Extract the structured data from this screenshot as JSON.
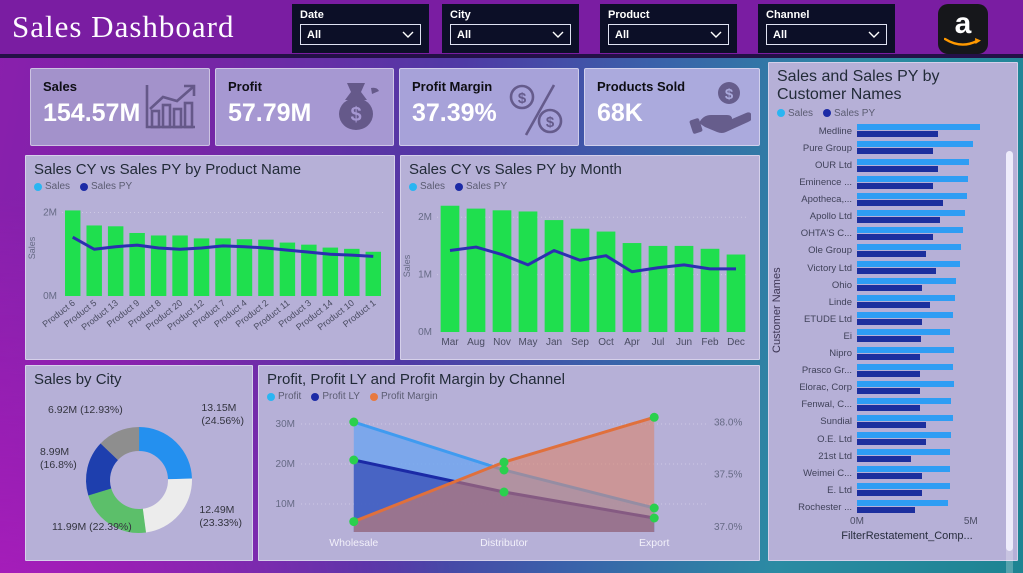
{
  "header": {
    "title": "Sales Dashboard",
    "filters": [
      {
        "label": "Date",
        "value": "All"
      },
      {
        "label": "City",
        "value": "All"
      },
      {
        "label": "Product",
        "value": "All"
      },
      {
        "label": "Channel",
        "value": "All"
      }
    ],
    "logo": {
      "name": "amazon",
      "letter": "a",
      "arrow_color": "#f90",
      "bg": "#16171b"
    }
  },
  "kpis": [
    {
      "label": "Sales",
      "value": "154.57M",
      "icon": "bar-chart-trend-icon"
    },
    {
      "label": "Profit",
      "value": "57.79M",
      "icon": "money-bag-icon"
    },
    {
      "label": "Profit Margin",
      "value": "37.39%",
      "icon": "percent-dollar-icon"
    },
    {
      "label": "Products Sold",
      "value": "68K",
      "icon": "hand-dollar-icon"
    }
  ],
  "colors": {
    "header_purple": "#7a1da2",
    "panel_bg": "#b6b0d7",
    "bar_green": "#1fdf4e",
    "line_navy": "#2b2fb0",
    "legend_sales": "#29b5f2",
    "legend_sales_py": "#1b2aa6",
    "legend_margin": "#e8793e",
    "hbar_sales": "#2e9df4",
    "hbar_sales_py": "#1c2f9e",
    "marker_green": "#2ad04d"
  },
  "chart_data": [
    {
      "type": "bar",
      "title": "Sales CY vs Sales PY by Product Name",
      "legend": [
        {
          "label": "Sales",
          "color": "#29b5f2"
        },
        {
          "label": "Sales PY",
          "color": "#1b2aa6"
        }
      ],
      "categories": [
        "Product 6",
        "Product 5",
        "Product 13",
        "Product 9",
        "Product 8",
        "Product 20",
        "Product 12",
        "Product 7",
        "Product 4",
        "Product 2",
        "Product 11",
        "Product 3",
        "Product 14",
        "Product 10",
        "Product 1"
      ],
      "series": [
        {
          "name": "Sales",
          "type": "bar",
          "color": "#1fdf4e",
          "values": [
            2.05,
            1.69,
            1.67,
            1.51,
            1.45,
            1.45,
            1.38,
            1.38,
            1.36,
            1.35,
            1.28,
            1.23,
            1.16,
            1.13,
            1.06
          ]
        },
        {
          "name": "Sales PY",
          "type": "line",
          "color": "#2b2fb0",
          "values": [
            1.41,
            1.12,
            1.18,
            1.22,
            1.15,
            1.12,
            1.15,
            1.2,
            1.18,
            1.15,
            1.1,
            1.05,
            1.0,
            0.98,
            0.95
          ]
        }
      ],
      "xlabel": "",
      "ylabel": "Sales",
      "ylim": [
        0,
        2.3
      ],
      "yticks": [
        {
          "label": "0M",
          "v": 0
        },
        {
          "label": "2M",
          "v": 2
        }
      ],
      "grid": true,
      "legend_position": "top-left",
      "rotate_xlabels": true
    },
    {
      "type": "bar",
      "title": "Sales CY vs Sales PY by Month",
      "legend": [
        {
          "label": "Sales",
          "color": "#29b5f2"
        },
        {
          "label": "Sales PY",
          "color": "#1b2aa6"
        }
      ],
      "categories": [
        "Mar",
        "Aug",
        "Nov",
        "May",
        "Jan",
        "Sep",
        "Oct",
        "Apr",
        "Jul",
        "Jun",
        "Feb",
        "Dec"
      ],
      "series": [
        {
          "name": "Sales",
          "type": "bar",
          "color": "#1fdf4e",
          "values": [
            2.2,
            2.15,
            2.12,
            2.1,
            1.95,
            1.8,
            1.75,
            1.55,
            1.5,
            1.5,
            1.45,
            1.35
          ]
        },
        {
          "name": "Sales PY",
          "type": "line",
          "color": "#2b2fb0",
          "values": [
            1.42,
            1.48,
            1.35,
            1.17,
            1.42,
            1.25,
            1.33,
            1.05,
            1.12,
            1.17,
            1.1,
            1.1
          ]
        }
      ],
      "xlabel": "",
      "ylabel": "Sales",
      "ylim": [
        0,
        2.3
      ],
      "yticks": [
        {
          "label": "0M",
          "v": 0
        },
        {
          "label": "1M",
          "v": 1
        },
        {
          "label": "2M",
          "v": 2
        }
      ],
      "grid": true,
      "legend_position": "top-left",
      "rotate_xlabels": false
    },
    {
      "type": "pie",
      "title": "Sales by City",
      "donut": true,
      "slices": [
        {
          "label": "13.15M\n(24.56%)",
          "value": 24.56,
          "color": "#2490ef"
        },
        {
          "label": "12.49M\n(23.33%)",
          "value": 23.33,
          "color": "#ececec"
        },
        {
          "label": "11.99M (22.39%)",
          "value": 22.39,
          "color": "#5cbf6a"
        },
        {
          "label": "8.99M\n(16.8%)",
          "value": 16.8,
          "color": "#1e3fae"
        },
        {
          "label": "6.92M (12.93%)",
          "value": 12.93,
          "color": "#8e8e8e"
        }
      ]
    },
    {
      "type": "area",
      "title": "Profit, Profit LY and Profit Margin by Channel",
      "legend": [
        {
          "label": "Profit",
          "color": "#29b5f2"
        },
        {
          "label": "Profit LY",
          "color": "#1b2aa6"
        },
        {
          "label": "Profit Margin",
          "color": "#e8793e"
        }
      ],
      "categories": [
        "Wholesale",
        "Distributor",
        "Export"
      ],
      "series": [
        {
          "name": "Profit",
          "axis": "left",
          "color": "#3f9bf0",
          "fill": "rgba(110,165,240,0.8)",
          "values": [
            30.5,
            18.5,
            9.0
          ]
        },
        {
          "name": "Profit LY",
          "axis": "left",
          "color": "#1b2aa6",
          "fill": "rgba(45,65,175,0.65)",
          "values": [
            21.0,
            13.0,
            6.5
          ]
        },
        {
          "name": "Profit Margin",
          "axis": "right",
          "color": "#e0703c",
          "fill": "rgba(220,130,100,0.55)",
          "values": [
            37.05,
            37.62,
            38.05
          ]
        }
      ],
      "marker_color": "#2ad04d",
      "left_ticks": [
        {
          "label": "10M",
          "v": 10
        },
        {
          "label": "20M",
          "v": 20
        },
        {
          "label": "30M",
          "v": 30
        }
      ],
      "right_ticks": [
        {
          "label": "37.0%",
          "v": 37.0
        },
        {
          "label": "37.5%",
          "v": 37.5
        },
        {
          "label": "38.0%",
          "v": 38.0
        }
      ],
      "left_lim": [
        3,
        33.5
      ],
      "right_lim": [
        36.95,
        38.12
      ],
      "grid": true,
      "legend_position": "top-left"
    },
    {
      "type": "bar",
      "orientation": "horizontal",
      "title": "Sales and Sales PY by Customer Names",
      "legend": [
        {
          "label": "Sales",
          "color": "#29b5f2"
        },
        {
          "label": "Sales PY",
          "color": "#1b2aa6"
        }
      ],
      "categories": [
        "Medline",
        "Pure Group",
        "OUR Ltd",
        "Eminence ...",
        "Apotheca,...",
        "Apollo Ltd",
        "OHTA'S C...",
        "Ole Group",
        "Victory Ltd",
        "Ohio",
        "Linde",
        "ETUDE Ltd",
        "Ei",
        "Nipro",
        "Prasco Gr...",
        "Elorac, Corp",
        "Fenwal, C...",
        "Sundial",
        "O.E. Ltd",
        "21st Ltd",
        "Weimei C...",
        "E. Ltd",
        "Rochester ..."
      ],
      "series": [
        {
          "name": "Sales",
          "color": "#2e9df4",
          "values": [
            4.9,
            4.6,
            4.45,
            4.4,
            4.35,
            4.3,
            4.2,
            4.15,
            4.1,
            3.95,
            3.9,
            3.8,
            3.7,
            3.85,
            3.8,
            3.85,
            3.75,
            3.8,
            3.75,
            3.7,
            3.7,
            3.7,
            3.6
          ]
        },
        {
          "name": "Sales PY",
          "color": "#1c2f9e",
          "values": [
            3.2,
            3.0,
            3.2,
            3.0,
            3.4,
            3.3,
            3.0,
            2.75,
            3.15,
            2.6,
            2.9,
            2.6,
            2.55,
            2.5,
            2.5,
            2.5,
            2.5,
            2.75,
            2.75,
            2.15,
            2.6,
            2.6,
            2.3
          ]
        }
      ],
      "xlabel": "FilterRestatement_Comp...",
      "ylabel": "Customer Names",
      "xlim": [
        0,
        5.8
      ],
      "xticks": [
        {
          "label": "0M",
          "v": 0
        },
        {
          "label": "5M",
          "v": 5
        }
      ]
    }
  ]
}
